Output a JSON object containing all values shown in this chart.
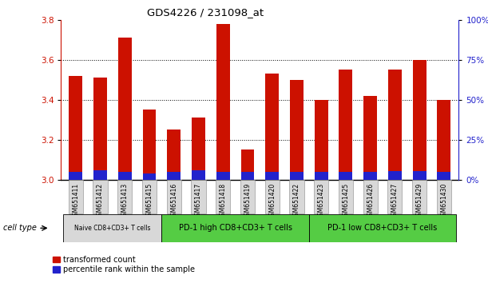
{
  "title": "GDS4226 / 231098_at",
  "samples": [
    "GSM651411",
    "GSM651412",
    "GSM651413",
    "GSM651415",
    "GSM651416",
    "GSM651417",
    "GSM651418",
    "GSM651419",
    "GSM651420",
    "GSM651422",
    "GSM651423",
    "GSM651425",
    "GSM651426",
    "GSM651427",
    "GSM651429",
    "GSM651430"
  ],
  "red_values": [
    3.52,
    3.51,
    3.71,
    3.35,
    3.25,
    3.31,
    3.78,
    3.15,
    3.53,
    3.5,
    3.4,
    3.55,
    3.42,
    3.55,
    3.6,
    3.4
  ],
  "blue_heights": [
    0.04,
    0.048,
    0.04,
    0.03,
    0.038,
    0.048,
    0.04,
    0.04,
    0.04,
    0.038,
    0.038,
    0.038,
    0.038,
    0.042,
    0.042,
    0.038
  ],
  "ylim": [
    3.0,
    3.8
  ],
  "yticks_left": [
    3.0,
    3.2,
    3.4,
    3.6,
    3.8
  ],
  "yticks_right": [
    0,
    25,
    50,
    75,
    100
  ],
  "cell_groups": [
    {
      "label": "Naive CD8+CD3+ T cells",
      "start": 0,
      "end": 4,
      "color": "#d8d8d8"
    },
    {
      "label": "PD-1 high CD8+CD3+ T cells",
      "start": 4,
      "end": 10,
      "color": "#55cc44"
    },
    {
      "label": "PD-1 low CD8+CD3+ T cells",
      "start": 10,
      "end": 16,
      "color": "#55cc44"
    }
  ],
  "bar_color_red": "#cc1100",
  "bar_color_blue": "#2222cc",
  "bar_width": 0.55,
  "legend_red": "transformed count",
  "legend_blue": "percentile rank within the sample",
  "cell_type_label": "cell type",
  "left_tick_color": "#cc1100",
  "right_tick_color": "#2222cc",
  "sample_box_color": "#d8d8d8",
  "grid_lines": [
    3.2,
    3.4,
    3.6
  ]
}
